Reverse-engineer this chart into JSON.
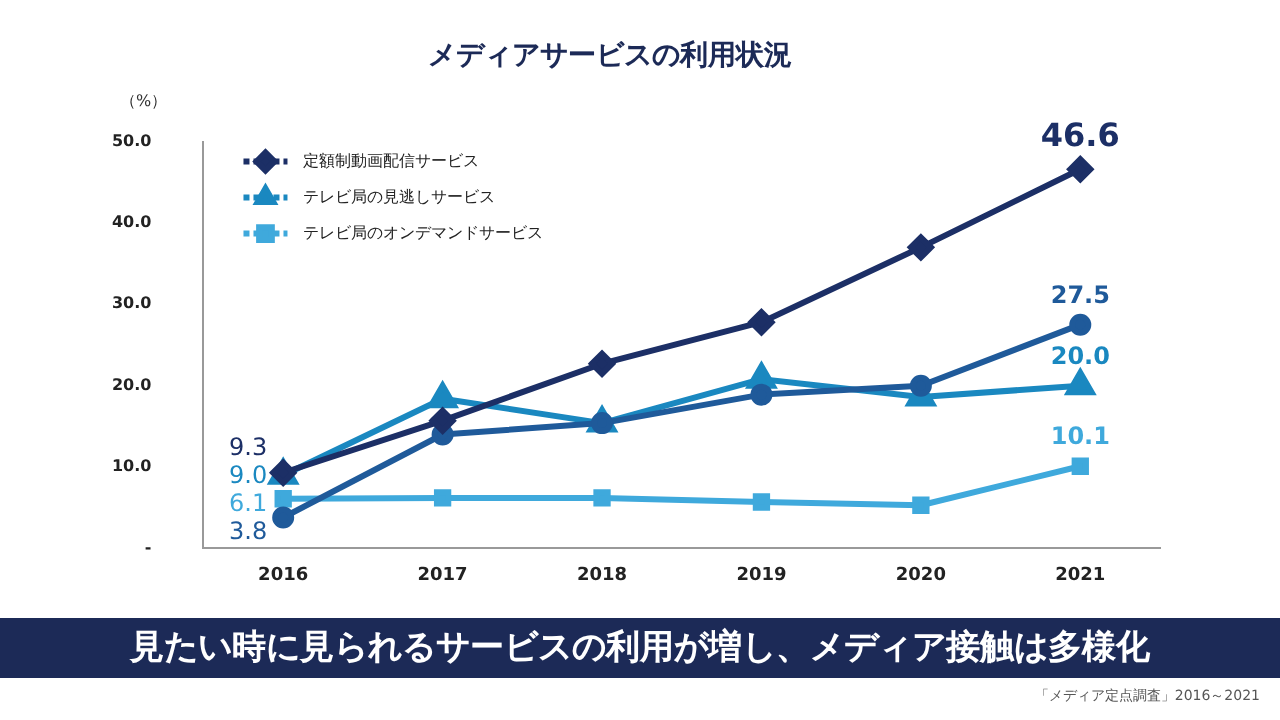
{
  "chart_data": {
    "type": "line",
    "title": "メディアサービスの利用状況",
    "ylabel": "（%）",
    "categories": [
      "2016",
      "2017",
      "2018",
      "2019",
      "2020",
      "2021"
    ],
    "series": [
      {
        "name": "定額制動画配信サービス",
        "color": "#1c2f66",
        "marker": "diamond",
        "values": [
          9.3,
          15.7,
          22.7,
          27.8,
          37.0,
          46.6
        ],
        "value_labels": [
          "9.3",
          null,
          null,
          null,
          null,
          "46.6"
        ]
      },
      {
        "color": "#1f5a9a",
        "marker": "circle",
        "values": [
          3.8,
          14.0,
          15.4,
          18.9,
          20.0,
          27.5
        ],
        "value_labels": [
          "3.8",
          null,
          null,
          null,
          null,
          "27.5"
        ]
      },
      {
        "name": "テレビ局の見逃しサービス",
        "color": "#1a88c0",
        "marker": "triangle",
        "values": [
          9.0,
          18.4,
          15.4,
          20.8,
          18.6,
          20.0
        ],
        "value_labels": [
          "9.0",
          null,
          null,
          null,
          null,
          "20.0"
        ]
      },
      {
        "name": "テレビ局のオンデマンドサービス",
        "color": "#3fa9dc",
        "marker": "square",
        "values": [
          6.1,
          6.2,
          6.2,
          5.7,
          5.3,
          10.1
        ],
        "value_labels": [
          "6.1",
          null,
          null,
          null,
          null,
          "10.1"
        ]
      }
    ],
    "ylim": [
      0,
      50
    ],
    "yticks": [
      {
        "value": 0,
        "label": "-"
      },
      {
        "value": 10,
        "label": "10.0"
      },
      {
        "value": 20,
        "label": "20.0"
      },
      {
        "value": 30,
        "label": "30.0"
      },
      {
        "value": 40,
        "label": "40.0"
      },
      {
        "value": 50,
        "label": "50.0"
      }
    ],
    "grid": false,
    "legend": "top left",
    "line_style": "solid",
    "annotations": [
      "見たい時に見られるサービスの利用が増し、メディア接触は多様化",
      "「メディア定点調査」2016～2021"
    ]
  }
}
